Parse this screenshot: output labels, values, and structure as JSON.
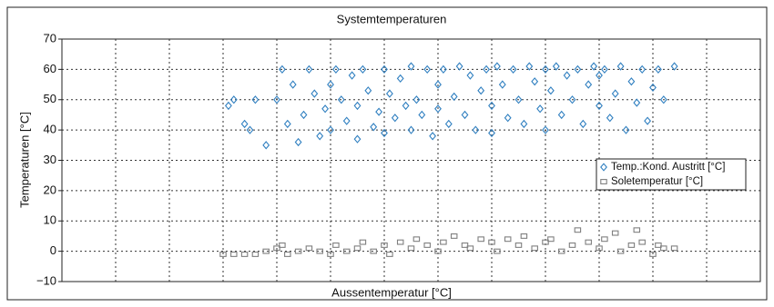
{
  "chart_data": {
    "type": "scatter",
    "title": "Systemtemperaturen",
    "x_label": "Aussentemperatur [°C]",
    "y_label": "Temperaturen [°C]",
    "xlim": [
      0,
      13
    ],
    "xticks": [
      0,
      1,
      2,
      3,
      4,
      5,
      6,
      7,
      8,
      9,
      10,
      11,
      12,
      13
    ],
    "ylim": [
      -10,
      70
    ],
    "yticks": [
      {
        "value": -10,
        "label": "−10"
      },
      0,
      10,
      20,
      30,
      40,
      50,
      60,
      70
    ],
    "grid": true,
    "legend_position": "right",
    "series": [
      {
        "name": "Temp.:Kond. Austritt [°C]",
        "color": "#2f7fc0",
        "marker": "diamond",
        "x": [
          3.1,
          3.2,
          3.4,
          3.5,
          3.6,
          3.8,
          4.0,
          4.1,
          4.2,
          4.3,
          4.4,
          4.5,
          4.6,
          4.7,
          4.8,
          4.9,
          5.0,
          5.0,
          5.1,
          5.2,
          5.3,
          5.4,
          5.5,
          5.5,
          5.6,
          5.7,
          5.8,
          5.9,
          6.0,
          6.0,
          6.1,
          6.2,
          6.3,
          6.4,
          6.5,
          6.5,
          6.6,
          6.7,
          6.8,
          6.9,
          7.0,
          7.0,
          7.1,
          7.2,
          7.3,
          7.4,
          7.5,
          7.6,
          7.7,
          7.8,
          7.9,
          8.0,
          8.0,
          8.1,
          8.2,
          8.3,
          8.4,
          8.5,
          8.6,
          8.7,
          8.8,
          8.9,
          9.0,
          9.0,
          9.1,
          9.2,
          9.3,
          9.4,
          9.5,
          9.6,
          9.7,
          9.8,
          9.9,
          10.0,
          10.0,
          10.1,
          10.2,
          10.3,
          10.4,
          10.5,
          10.6,
          10.7,
          10.8,
          10.9,
          11.0,
          11.1,
          11.2,
          11.4
        ],
        "values": [
          48,
          50,
          42,
          40,
          50,
          35,
          50,
          60,
          42,
          55,
          36,
          45,
          60,
          52,
          38,
          47,
          55,
          40,
          60,
          50,
          43,
          58,
          48,
          37,
          60,
          53,
          41,
          46,
          60,
          39,
          52,
          44,
          57,
          48,
          61,
          40,
          50,
          45,
          60,
          38,
          55,
          47,
          60,
          42,
          51,
          61,
          45,
          58,
          40,
          53,
          60,
          48,
          39,
          61,
          55,
          44,
          60,
          50,
          42,
          61,
          56,
          47,
          60,
          40,
          53,
          61,
          45,
          58,
          50,
          60,
          42,
          55,
          61,
          48,
          58,
          60,
          44,
          52,
          61,
          40,
          56,
          49,
          60,
          43,
          54,
          60,
          50,
          61
        ]
      },
      {
        "name": "Soletemperatur [°C]",
        "color": "#7f7f7f",
        "marker": "square",
        "x": [
          3.0,
          3.2,
          3.4,
          3.6,
          3.8,
          4.0,
          4.1,
          4.2,
          4.4,
          4.6,
          4.8,
          5.0,
          5.1,
          5.3,
          5.5,
          5.6,
          5.8,
          6.0,
          6.1,
          6.3,
          6.5,
          6.6,
          6.8,
          7.0,
          7.1,
          7.3,
          7.5,
          7.6,
          7.8,
          8.0,
          8.1,
          8.3,
          8.5,
          8.6,
          8.8,
          9.0,
          9.1,
          9.3,
          9.5,
          9.6,
          9.8,
          10.0,
          10.1,
          10.3,
          10.4,
          10.6,
          10.7,
          10.8,
          11.0,
          11.1,
          11.2,
          11.4
        ],
        "values": [
          -1,
          -1,
          -1,
          -1,
          0,
          1,
          2,
          -1,
          0,
          1,
          0,
          -1,
          2,
          0,
          1,
          3,
          0,
          2,
          -1,
          3,
          1,
          4,
          2,
          0,
          3,
          5,
          2,
          1,
          4,
          3,
          0,
          4,
          2,
          5,
          1,
          3,
          4,
          0,
          2,
          7,
          3,
          1,
          4,
          6,
          0,
          2,
          7,
          3,
          -1,
          2,
          1,
          1
        ]
      }
    ]
  }
}
